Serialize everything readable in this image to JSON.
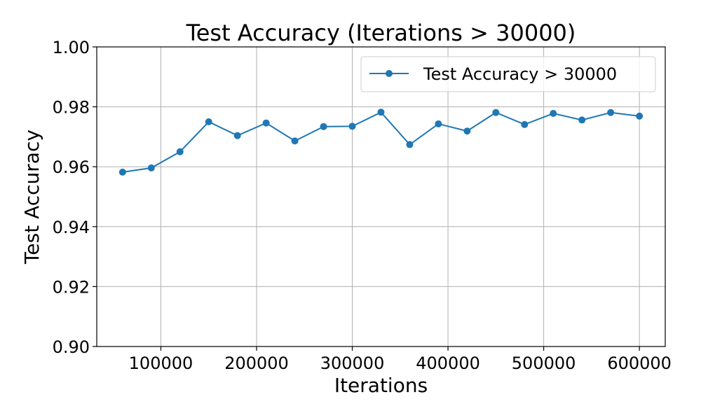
{
  "chart_data": {
    "type": "line",
    "title": "Test Accuracy (Iterations > 30000)",
    "xlabel": "Iterations",
    "ylabel": "Test Accuracy",
    "xlim": [
      33000,
      627000
    ],
    "ylim": [
      0.9,
      1.0
    ],
    "xticks": [
      100000,
      200000,
      300000,
      400000,
      500000,
      600000
    ],
    "xtick_labels": [
      "100000",
      "200000",
      "300000",
      "400000",
      "500000",
      "600000"
    ],
    "yticks": [
      0.9,
      0.92,
      0.94,
      0.96,
      0.98,
      1.0
    ],
    "ytick_labels": [
      "0.90",
      "0.92",
      "0.94",
      "0.96",
      "0.98",
      "1.00"
    ],
    "grid": true,
    "legend_position": "top-right",
    "series": [
      {
        "name": "Test Accuracy > 30000",
        "color": "#1f77b4",
        "marker": "circle",
        "x": [
          60000,
          90000,
          120000,
          150000,
          180000,
          210000,
          240000,
          270000,
          300000,
          330000,
          360000,
          390000,
          420000,
          450000,
          480000,
          510000,
          540000,
          570000,
          600000
        ],
        "y": [
          0.9582,
          0.9596,
          0.965,
          0.975,
          0.9704,
          0.9746,
          0.9686,
          0.9734,
          0.9735,
          0.9782,
          0.9674,
          0.9743,
          0.9719,
          0.9781,
          0.9741,
          0.9778,
          0.9756,
          0.9781,
          0.9769
        ]
      }
    ]
  }
}
